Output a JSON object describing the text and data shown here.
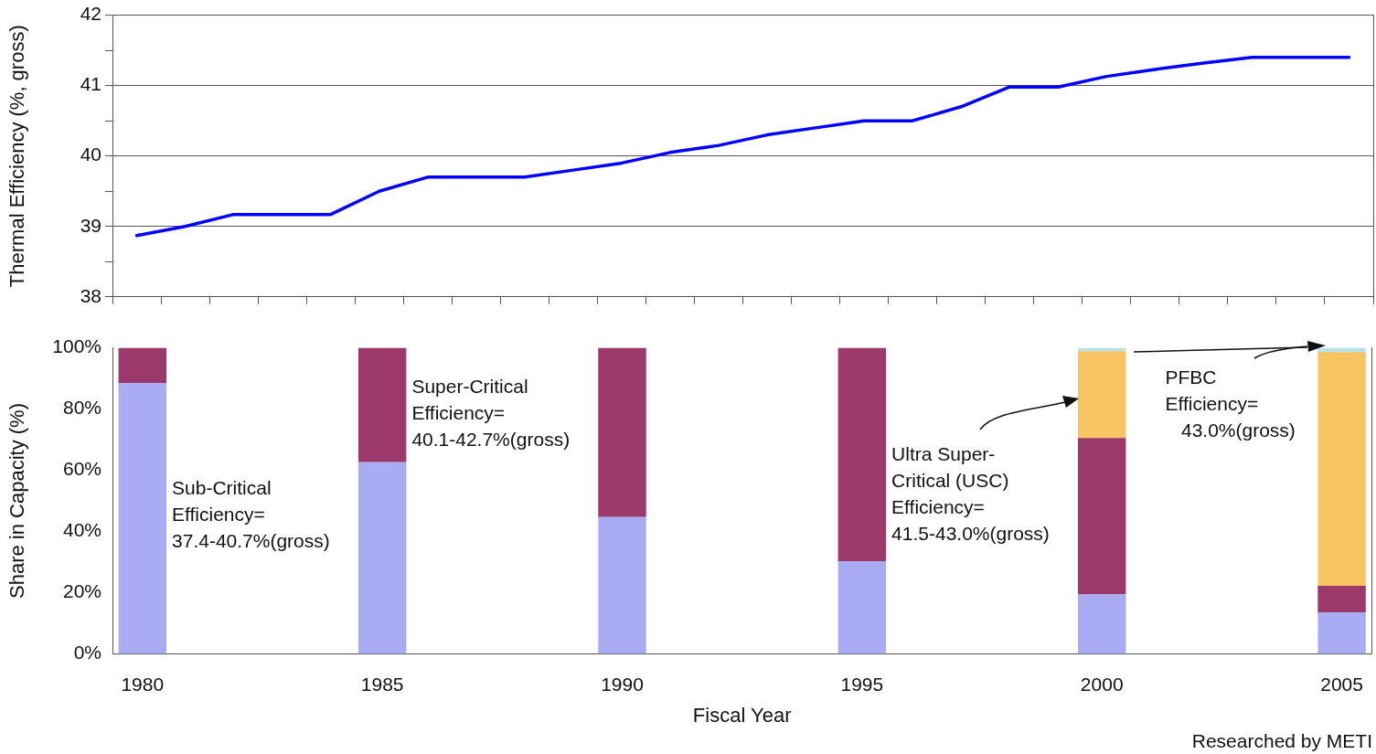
{
  "chart_data": [
    {
      "type": "line",
      "ylabel": "Thermal Efficiency (%, gross)",
      "categories": [
        null,
        null,
        null,
        null,
        null,
        null,
        null,
        null,
        null,
        null,
        null,
        null,
        null,
        null,
        null,
        null,
        null,
        null,
        null,
        null,
        null,
        null,
        null,
        null,
        null,
        null
      ],
      "series": [
        {
          "color": "#0000ff",
          "values": [
            38.87,
            39.0,
            39.17,
            39.17,
            39.17,
            39.5,
            39.7,
            39.7,
            39.7,
            39.8,
            39.9,
            40.05,
            40.15,
            40.3,
            40.4,
            40.5,
            40.5,
            40.7,
            40.98,
            40.98,
            41.13,
            41.23,
            41.32,
            41.4,
            41.4,
            41.4
          ]
        }
      ],
      "ylim": [
        38,
        42
      ],
      "yticks": [
        38,
        {
          "value": 38.5,
          "label": null
        },
        39,
        {
          "value": 39.5,
          "label": null
        },
        40,
        {
          "value": 40.5,
          "label": null
        },
        41,
        {
          "value": 41.5,
          "label": null
        },
        42
      ],
      "grid": "y",
      "tick_labels": "y",
      "marker": "none",
      "line_style": "solid"
    },
    {
      "type": "bar",
      "stacked": true,
      "ylabel": "Share in Capacity (%)",
      "xlabel": "Fiscal Year",
      "categories": [
        "1980",
        "1985",
        "1990",
        "1995",
        "2000",
        "2005"
      ],
      "series": [
        {
          "color": "#a9acf2",
          "values": [
            88.5,
            62.6,
            44.7,
            30.3,
            19.4,
            13.5
          ]
        },
        {
          "color": "#9b3a6a",
          "values": [
            11.5,
            37.4,
            55.3,
            69.7,
            51.1,
            8.7
          ]
        },
        {
          "color": "#f9c463",
          "values": [
            null,
            null,
            null,
            null,
            28.4,
            76.4
          ]
        },
        {
          "color": "#b9e3ea",
          "values": [
            null,
            null,
            null,
            null,
            1.1,
            1.4
          ]
        }
      ],
      "ylim": [
        0,
        100
      ],
      "yticks": [
        {
          "value": 0,
          "label": "0%"
        },
        {
          "value": 20,
          "label": "20%"
        },
        {
          "value": 40,
          "label": "40%"
        },
        {
          "value": 60,
          "label": "60%"
        },
        {
          "value": 80,
          "label": "80%"
        },
        {
          "value": 100,
          "label": "100%"
        }
      ],
      "annotations": [
        "Sub-Critical\nEfficiency=\n37.4-40.7%(gross)",
        "Super-Critical\nEfficiency=\n40.1-42.7%(gross)",
        "Ultra Super-\nCritical (USC)\nEfficiency=\n41.5-43.0%(gross)",
        "PFBC\nEfficiency=\n   43.0%(gross)",
        "Researched by METI"
      ]
    }
  ]
}
